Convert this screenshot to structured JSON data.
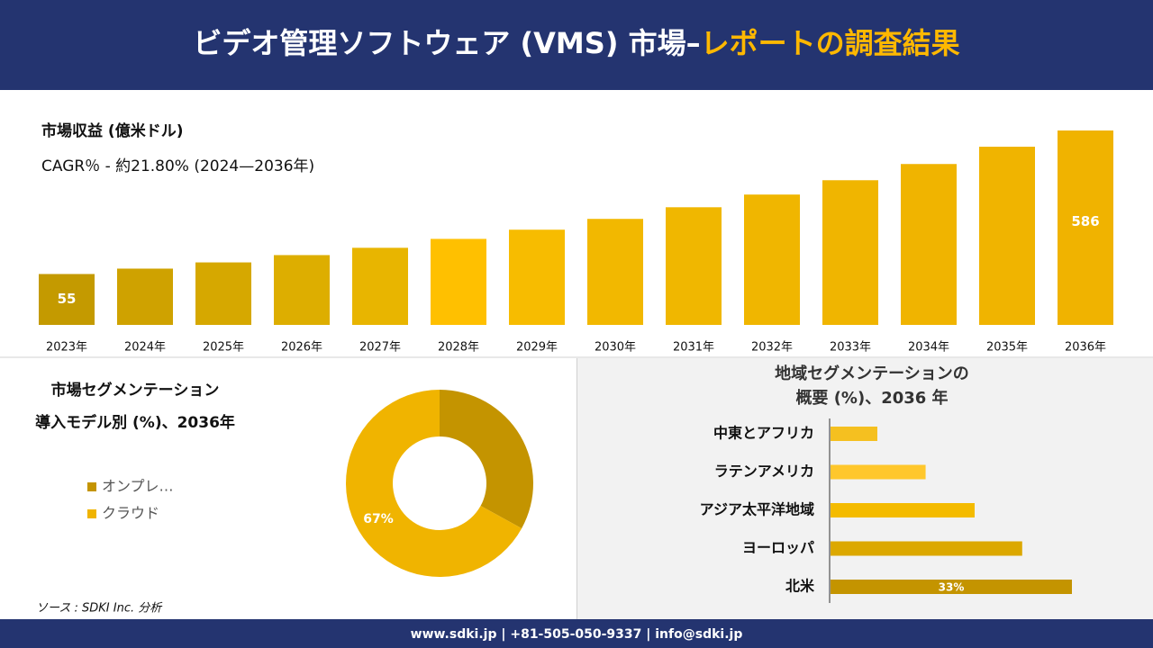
{
  "header": {
    "title_main": "ビデオ管理ソフトウェア (VMS) 市場–",
    "title_highlight": "レポートの調査結果"
  },
  "chart_data": [
    {
      "type": "bar",
      "title": "市場収益 (億米ドル)",
      "subtitle": "CAGR％ - 約21.80% (2024—2036年)",
      "categories": [
        "2023年",
        "2024年",
        "2025年",
        "2026年",
        "2027年",
        "2028年",
        "2029年",
        "2030年",
        "2031年",
        "2032年",
        "2033年",
        "2034年",
        "2035年",
        "2036年"
      ],
      "values": [
        55,
        75,
        98,
        125,
        152,
        185,
        219,
        259,
        302,
        349,
        402,
        462,
        526,
        586
      ],
      "value_labels": [
        "55",
        null,
        null,
        null,
        null,
        null,
        null,
        null,
        null,
        null,
        null,
        null,
        null,
        "586"
      ],
      "colors": [
        "#c49a00",
        "#cfa200",
        "#d6a800",
        "#ddae00",
        "#e8b500",
        "#ffc000",
        "#f7bc00",
        "#f2b800",
        "#f0b700",
        "#f0b600",
        "#f0b500",
        "#f0b400",
        "#f0b400",
        "#f0b300"
      ]
    },
    {
      "type": "donut",
      "title": "市場セグメンテーション",
      "subtitle": "導入モデル別 (%)、2036年",
      "categories": [
        "オンプレ…",
        "クラウド"
      ],
      "values": [
        33,
        67
      ],
      "value_labels": [
        null,
        "67%"
      ],
      "colors": [
        "#c49400",
        "#f0b400"
      ]
    },
    {
      "type": "hbar",
      "title": "地域セグメンテーションの",
      "subtitle": "概要 (%)、2036 年",
      "categories": [
        "中東とアフリカ",
        "ラテンアメリカ",
        "アジア太平洋地域",
        "ヨーロッパ",
        "北米"
      ],
      "values": [
        6.4,
        13,
        19.7,
        26.2,
        33
      ],
      "value_labels": [
        null,
        null,
        null,
        null,
        "33%"
      ],
      "colors": [
        "#f5c020",
        "#ffc72c",
        "#f4bb00",
        "#dca800",
        "#c49400"
      ]
    }
  ],
  "source": "ソース : SDKI Inc. 分析",
  "footer": "www.sdki.jp | +81-505-050-9337 | info@sdki.jp"
}
